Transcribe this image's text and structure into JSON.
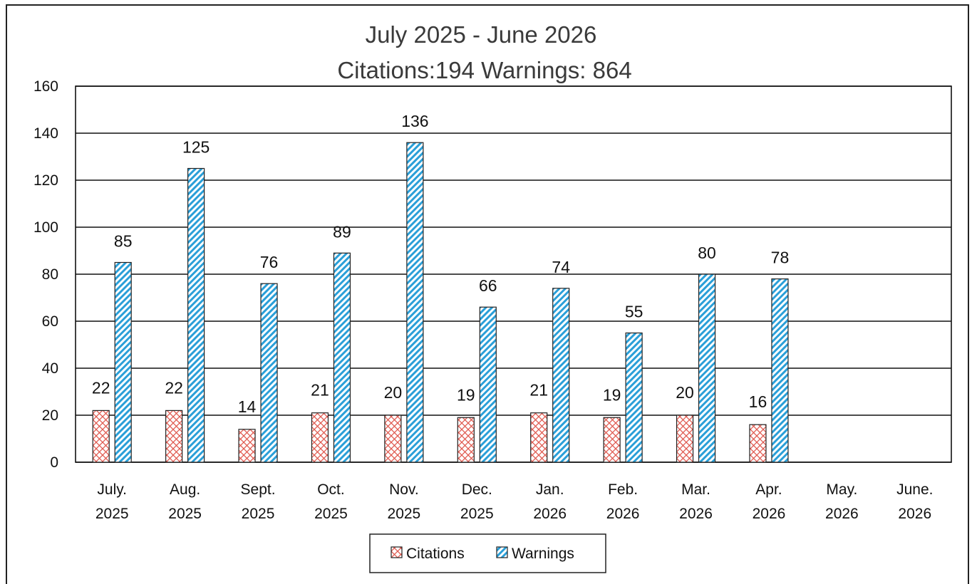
{
  "chart_data": {
    "type": "bar",
    "title": "July 2025 - June 2026",
    "subtitle": "Citations:194   Warnings: 864",
    "categories": [
      [
        "July.",
        "2025"
      ],
      [
        "Aug.",
        "2025"
      ],
      [
        "Sept.",
        "2025"
      ],
      [
        "Oct.",
        "2025"
      ],
      [
        "Nov.",
        "2025"
      ],
      [
        "Dec.",
        "2025"
      ],
      [
        "Jan.",
        "2026"
      ],
      [
        "Feb.",
        "2026"
      ],
      [
        "Mar.",
        "2026"
      ],
      [
        "Apr.",
        "2026"
      ],
      [
        "May.",
        "2026"
      ],
      [
        "June.",
        "2026"
      ]
    ],
    "series": [
      {
        "name": "Citations",
        "values": [
          22,
          22,
          14,
          21,
          20,
          19,
          21,
          19,
          20,
          16,
          null,
          null
        ],
        "color": "#e05a50",
        "pattern": "crosshatch"
      },
      {
        "name": "Warnings",
        "values": [
          85,
          125,
          76,
          89,
          136,
          66,
          74,
          55,
          80,
          78,
          null,
          null
        ],
        "color": "#2a9fd8",
        "pattern": "diagonal"
      }
    ],
    "ylim": [
      0,
      160
    ],
    "yticks": [
      0,
      20,
      40,
      60,
      80,
      100,
      120,
      140,
      160
    ],
    "grid": true,
    "legend": "bottom-center",
    "xlabel": "",
    "ylabel": ""
  }
}
